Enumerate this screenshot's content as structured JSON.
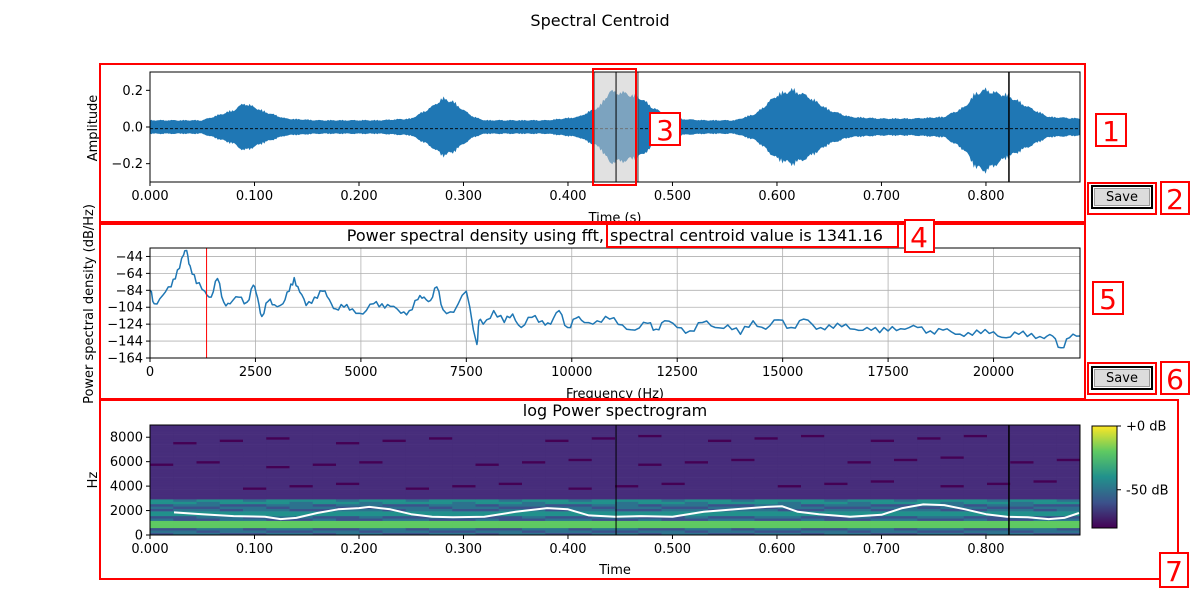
{
  "figure_title": "Spectral Centroid",
  "buttons": {
    "save_waveform": "Save",
    "save_psd": "Save"
  },
  "annotations": [
    "1",
    "2",
    "3",
    "4",
    "5",
    "6",
    "7"
  ],
  "colors": {
    "series": "#1f77b4",
    "annotation": "#ff0000",
    "marker": "#000000",
    "selection": "#c8c8c8",
    "centroid_curve": "#ffffff"
  },
  "chart_data": [
    {
      "type": "line",
      "panel": "waveform",
      "title": "",
      "xlabel": "Time (s)",
      "ylabel": "Amplitude",
      "xlim": [
        0,
        0.89
      ],
      "ylim": [
        -0.3,
        0.3
      ],
      "xticks": [
        0.0,
        0.1,
        0.2,
        0.3,
        0.4,
        0.5,
        0.6,
        0.7,
        0.8
      ],
      "xtick_labels": [
        "0.000",
        "0.100",
        "0.200",
        "0.300",
        "0.400",
        "0.500",
        "0.600",
        "0.700",
        "0.800"
      ],
      "yticks": [
        0.2,
        0.0,
        -0.2
      ],
      "ytick_labels": [
        "0.2",
        "0.0",
        "−0.2"
      ],
      "envelope": {
        "x": [
          0.0,
          0.05,
          0.08,
          0.09,
          0.095,
          0.11,
          0.13,
          0.16,
          0.19,
          0.22,
          0.25,
          0.27,
          0.28,
          0.29,
          0.3,
          0.31,
          0.32,
          0.35,
          0.38,
          0.41,
          0.43,
          0.44,
          0.455,
          0.47,
          0.48,
          0.5,
          0.53,
          0.56,
          0.58,
          0.6,
          0.615,
          0.63,
          0.65,
          0.67,
          0.7,
          0.73,
          0.76,
          0.78,
          0.79,
          0.8,
          0.81,
          0.82,
          0.84,
          0.86,
          0.89
        ],
        "upper": [
          0.04,
          0.04,
          0.1,
          0.14,
          0.13,
          0.09,
          0.05,
          0.04,
          0.04,
          0.04,
          0.05,
          0.12,
          0.17,
          0.15,
          0.1,
          0.06,
          0.04,
          0.04,
          0.04,
          0.06,
          0.12,
          0.21,
          0.2,
          0.17,
          0.12,
          0.05,
          0.04,
          0.04,
          0.08,
          0.19,
          0.22,
          0.18,
          0.1,
          0.06,
          0.05,
          0.05,
          0.06,
          0.12,
          0.2,
          0.22,
          0.2,
          0.19,
          0.12,
          0.06,
          0.05
        ],
        "lower": [
          -0.04,
          -0.04,
          -0.1,
          -0.14,
          -0.13,
          -0.09,
          -0.05,
          -0.04,
          -0.04,
          -0.04,
          -0.05,
          -0.12,
          -0.17,
          -0.15,
          -0.1,
          -0.06,
          -0.04,
          -0.04,
          -0.04,
          -0.06,
          -0.12,
          -0.21,
          -0.2,
          -0.17,
          -0.12,
          -0.05,
          -0.04,
          -0.04,
          -0.08,
          -0.19,
          -0.22,
          -0.18,
          -0.1,
          -0.06,
          -0.05,
          -0.05,
          -0.06,
          -0.14,
          -0.24,
          -0.26,
          -0.22,
          -0.18,
          -0.12,
          -0.06,
          -0.05
        ]
      },
      "selection_span": [
        0.425,
        0.467
      ],
      "selection_marker": 0.446,
      "cursor_time": 0.822
    },
    {
      "type": "line",
      "panel": "psd",
      "title_part1": "Power spectral density using fft,",
      "title_part2": "spectral centroid value is 1341.16",
      "xlabel": "Frequency (Hz)",
      "ylabel": "Power spectral density (dB/Hz)",
      "xlim": [
        0,
        22050
      ],
      "ylim": [
        -164,
        -34
      ],
      "xticks": [
        0,
        2500,
        5000,
        7500,
        10000,
        12500,
        15000,
        17500,
        20000
      ],
      "xtick_labels": [
        "0",
        "2500",
        "5000",
        "7500",
        "10000",
        "12500",
        "15000",
        "17500",
        "20000"
      ],
      "yticks": [
        -44,
        -64,
        -84,
        -104,
        -124,
        -144,
        -164
      ],
      "ytick_labels": [
        "−44",
        "−64",
        "−84",
        "−104",
        "−124",
        "−144",
        "−164"
      ],
      "grid": true,
      "centroid": 1341.16,
      "x": [
        0,
        100,
        300,
        500,
        650,
        800,
        870,
        950,
        1100,
        1300,
        1450,
        1600,
        1750,
        1900,
        2100,
        2300,
        2450,
        2550,
        2650,
        2800,
        2950,
        3150,
        3300,
        3420,
        3550,
        3700,
        3900,
        4100,
        4250,
        4400,
        4600,
        4800,
        5050,
        5300,
        5500,
        5700,
        5950,
        6150,
        6350,
        6500,
        6650,
        6800,
        6950,
        7200,
        7500,
        7750,
        7800,
        7900,
        8150,
        8400,
        8600,
        8800,
        9050,
        9300,
        9500,
        9700,
        9900,
        10100,
        10300,
        10600,
        10900,
        11200,
        11500,
        11800,
        12000,
        12200,
        12500,
        12800,
        13100,
        13400,
        13700,
        14000,
        14300,
        14600,
        14900,
        15200,
        15500,
        15800,
        16100,
        16400,
        16700,
        17000,
        17300,
        17600,
        17900,
        18200,
        18500,
        18800,
        19100,
        19400,
        19700,
        20000,
        20300,
        20600,
        20900,
        21200,
        21400,
        21600,
        21800,
        22050
      ],
      "y": [
        -84,
        -100,
        -90,
        -80,
        -60,
        -42,
        -37,
        -55,
        -76,
        -85,
        -92,
        -70,
        -98,
        -100,
        -92,
        -98,
        -78,
        -93,
        -115,
        -97,
        -101,
        -100,
        -85,
        -69,
        -86,
        -102,
        -92,
        -85,
        -95,
        -106,
        -104,
        -106,
        -112,
        -100,
        -100,
        -103,
        -111,
        -108,
        -95,
        -92,
        -96,
        -80,
        -107,
        -110,
        -85,
        -148,
        -120,
        -124,
        -108,
        -122,
        -112,
        -128,
        -116,
        -120,
        -124,
        -108,
        -128,
        -117,
        -122,
        -120,
        -118,
        -125,
        -131,
        -123,
        -130,
        -120,
        -128,
        -132,
        -122,
        -128,
        -125,
        -136,
        -120,
        -130,
        -119,
        -128,
        -118,
        -130,
        -125,
        -127,
        -130,
        -128,
        -134,
        -127,
        -130,
        -128,
        -132,
        -131,
        -136,
        -134,
        -135,
        -133,
        -140,
        -136,
        -135,
        -141,
        -138,
        -152,
        -140,
        -138
      ]
    },
    {
      "type": "heatmap",
      "panel": "spectrogram",
      "title": "log Power spectrogram",
      "xlabel": "Time",
      "ylabel": "Hz",
      "xlim": [
        0,
        0.89
      ],
      "ylim": [
        0,
        9000
      ],
      "xticks": [
        0.0,
        0.1,
        0.2,
        0.3,
        0.4,
        0.5,
        0.6,
        0.7,
        0.8
      ],
      "xtick_labels": [
        "0.000",
        "0.100",
        "0.200",
        "0.300",
        "0.400",
        "0.500",
        "0.600",
        "0.700",
        "0.800"
      ],
      "yticks": [
        0,
        2000,
        4000,
        6000,
        8000
      ],
      "ytick_labels": [
        "0",
        "2000",
        "4000",
        "6000",
        "8000"
      ],
      "colorbar": {
        "ticks": [
          0,
          -50
        ],
        "tick_labels": [
          "+0 dB",
          "-50 dB"
        ],
        "range": [
          -80,
          0
        ],
        "colormap": "viridis"
      },
      "centroid_curve": {
        "x": [
          0.023,
          0.05,
          0.08,
          0.11,
          0.125,
          0.14,
          0.16,
          0.18,
          0.2,
          0.21,
          0.23,
          0.25,
          0.27,
          0.29,
          0.32,
          0.35,
          0.38,
          0.4,
          0.42,
          0.445,
          0.47,
          0.5,
          0.53,
          0.56,
          0.59,
          0.605,
          0.62,
          0.64,
          0.67,
          0.7,
          0.72,
          0.74,
          0.76,
          0.78,
          0.8,
          0.82,
          0.84,
          0.86,
          0.875,
          0.889
        ],
        "y": [
          1850,
          1700,
          1550,
          1500,
          1300,
          1400,
          1800,
          2100,
          2200,
          2300,
          2100,
          1700,
          1500,
          1450,
          1500,
          1900,
          2200,
          2100,
          1600,
          1500,
          1550,
          1500,
          1900,
          2100,
          2300,
          2350,
          1900,
          1700,
          1500,
          1650,
          2200,
          2500,
          2450,
          2100,
          1700,
          1500,
          1450,
          1300,
          1400,
          1800
        ]
      },
      "selection_marker": 0.446,
      "cursor_time": 0.822
    }
  ]
}
